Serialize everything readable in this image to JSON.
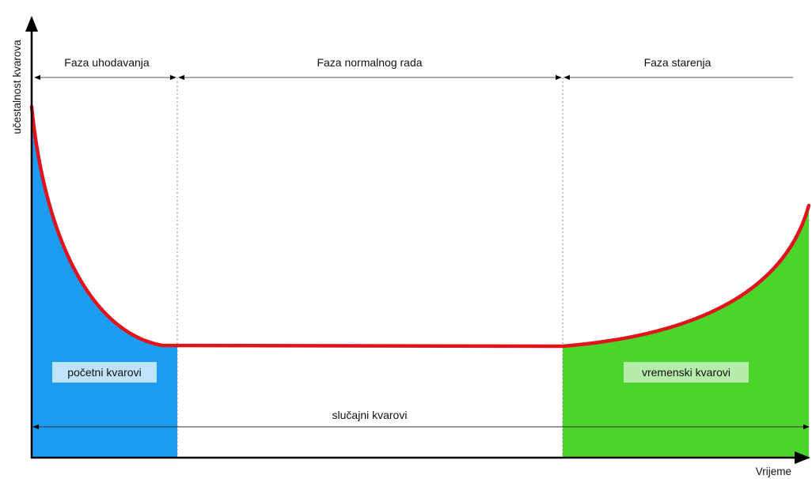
{
  "axes": {
    "y_label": "učestalnost kvarova",
    "x_label": "Vrijeme"
  },
  "phases": [
    {
      "label": "Faza uhodavanja"
    },
    {
      "label": "Faza normalnog rada"
    },
    {
      "label": "Faza starenja"
    }
  ],
  "regions": {
    "early": {
      "label": "početni kvarovi",
      "color": "#1b9cf0",
      "label_bg": "#bfe3fb"
    },
    "random": {
      "label": "slučajni kvarovi"
    },
    "wearout": {
      "label": "vremenski kvarovi",
      "color": "#4cd42c",
      "label_bg": "#b5ecaa"
    }
  },
  "curve_color": "#e0141c"
}
